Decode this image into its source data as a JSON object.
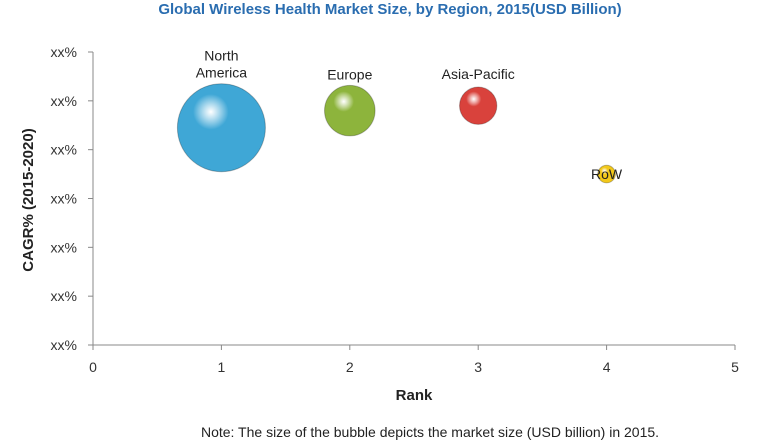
{
  "chart_data": {
    "type": "scatter",
    "title": "Global Wireless Health Market Size, by Region, 2015(USD Billion)",
    "xlabel": "Rank",
    "ylabel": "CAGR% (2015-2020)",
    "xlim": [
      0,
      5
    ],
    "x_ticks": [
      "0",
      "1",
      "2",
      "3",
      "4",
      "5"
    ],
    "y_tick_labels": [
      "xx%",
      "xx%",
      "xx%",
      "xx%",
      "xx%",
      "xx%",
      "xx%"
    ],
    "ylim": [
      0,
      6
    ],
    "note": "Note: The size of the bubble depicts the market size (USD billion) in 2015.",
    "series": [
      {
        "name": "North America",
        "label_lines": [
          "North",
          "America"
        ],
        "x": 1,
        "y": 4.45,
        "size": 1.0,
        "color": "#3fa7d6"
      },
      {
        "name": "Europe",
        "label_lines": [
          "Europe"
        ],
        "x": 2,
        "y": 4.8,
        "size": 0.33,
        "color": "#8db43c"
      },
      {
        "name": "Asia-Pacific",
        "label_lines": [
          "Asia-Pacific"
        ],
        "x": 3,
        "y": 4.9,
        "size": 0.18,
        "color": "#d9423c"
      },
      {
        "name": "RoW",
        "label_lines": [
          "RoW"
        ],
        "x": 4,
        "y": 3.5,
        "size": 0.04,
        "color": "#f2c81a"
      }
    ]
  }
}
